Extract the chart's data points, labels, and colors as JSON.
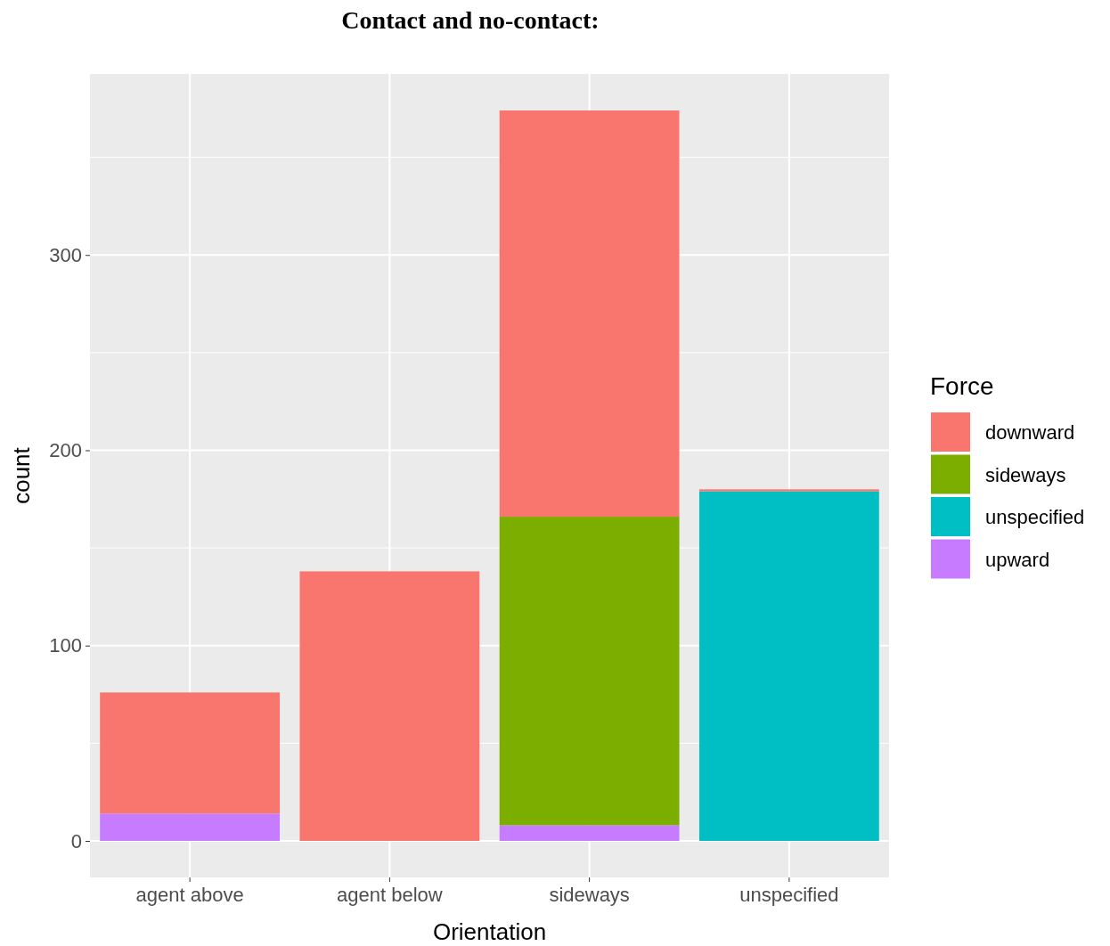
{
  "chart_data": {
    "type": "bar",
    "title": "Contact and no-contact:",
    "xlabel": "Orientation",
    "ylabel": "count",
    "legend_title": "Force",
    "categories": [
      "agent above",
      "agent below",
      "sideways",
      "unspecified"
    ],
    "series": [
      {
        "name": "upward",
        "color": "#c77cff",
        "values": [
          14,
          0,
          8,
          0
        ]
      },
      {
        "name": "unspecified",
        "color": "#00bfc4",
        "values": [
          0,
          0,
          0,
          179
        ]
      },
      {
        "name": "sideways",
        "color": "#7cae00",
        "values": [
          0,
          0,
          158,
          0
        ]
      },
      {
        "name": "downward",
        "color": "#f8766d",
        "values": [
          62,
          138,
          208,
          1
        ]
      }
    ],
    "stacked": true,
    "ylim": [
      -18.7,
      392.7
    ],
    "yticks": [
      0,
      100,
      200,
      300
    ],
    "grid": true,
    "legend": "right"
  }
}
